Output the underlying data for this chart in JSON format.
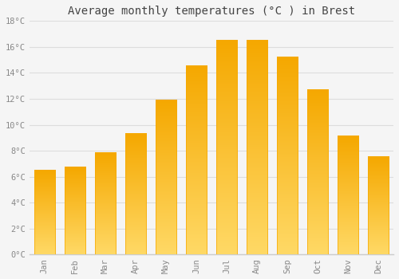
{
  "title": "Average monthly temperatures (Â°C ) in Brest",
  "title_plain": "Average monthly temperatures (°C ) in Brest",
  "months": [
    "Jan",
    "Feb",
    "Mar",
    "Apr",
    "May",
    "Jun",
    "Jul",
    "Aug",
    "Sep",
    "Oct",
    "Nov",
    "Dec"
  ],
  "values": [
    6.5,
    6.7,
    7.8,
    9.3,
    11.9,
    14.5,
    16.5,
    16.5,
    15.2,
    12.7,
    9.1,
    7.5
  ],
  "bar_color_top": "#F5A800",
  "bar_color_bottom": "#FFD966",
  "background_color": "#F5F5F5",
  "plot_bg_color": "#F5F5F5",
  "grid_color": "#DDDDDD",
  "title_color": "#444444",
  "tick_label_color": "#888888",
  "spine_color": "#CCCCCC",
  "ylim": [
    0,
    18
  ],
  "ytick_interval": 2,
  "title_fontsize": 10,
  "tick_fontsize": 7.5,
  "font_family": "monospace"
}
